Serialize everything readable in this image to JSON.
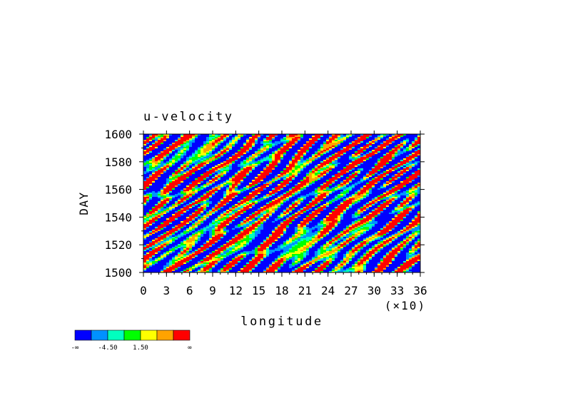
{
  "chart_data": {
    "type": "heatmap",
    "title": "u-velocity",
    "xlabel": "longitude",
    "ylabel": "DAY",
    "x_tick_labels": [
      "0",
      "3",
      "6",
      "9",
      "12",
      "15",
      "18",
      "21",
      "24",
      "27",
      "30",
      "33",
      "36"
    ],
    "x_multiplier_label": "(×10)",
    "y_tick_labels": [
      "1500",
      "1520",
      "1540",
      "1560",
      "1580",
      "1600"
    ],
    "xlim": [
      0,
      360
    ],
    "ylim": [
      1500,
      1600
    ],
    "colorbar": {
      "colors": [
        "#0000ff",
        "#0091ff",
        "#00ffbf",
        "#00ff00",
        "#ffff00",
        "#ffa300",
        "#ff0000"
      ],
      "labels": [
        "-∞",
        "-4.50",
        "1.50",
        "∞"
      ]
    }
  }
}
